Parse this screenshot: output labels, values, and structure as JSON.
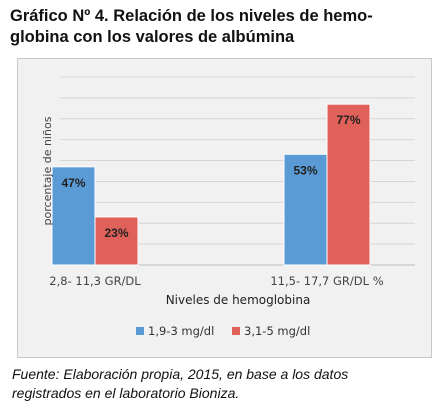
{
  "title": "Gráfico Nº 4. Relación de los niveles de hemoglobina con los valores de albúmina",
  "title_lines": [
    "Gráfico Nº 4. Relación de los niveles de hemo-",
    "globina con los valores de albúmina"
  ],
  "source_lines": [
    "Fuente: Elaboración propia, 2015, en base a los datos",
    "registrados en el laboratorio Bioniza."
  ],
  "chart_data": {
    "type": "bar",
    "categories": [
      "2,8- 11,3 GR/DL",
      "11,5- 17,7 GR/DL %"
    ],
    "series": [
      {
        "name": "1,9-3 mg/dl",
        "values": [
          47,
          53
        ],
        "labels": [
          "47%",
          "53%"
        ],
        "color": "#5b9bd5"
      },
      {
        "name": "3,1-5 mg/dl",
        "values": [
          23,
          77
        ],
        "labels": [
          "23%",
          "77%"
        ],
        "color": "#e0605a"
      }
    ],
    "xlabel": "Niveles de hemoglobina",
    "ylabel": "porcentaje de niños",
    "ylim": [
      0,
      90
    ],
    "grid": true,
    "legend": "bottom",
    "colors": {
      "background": "#f1f1f1",
      "grid": "#d6d6d6"
    }
  }
}
